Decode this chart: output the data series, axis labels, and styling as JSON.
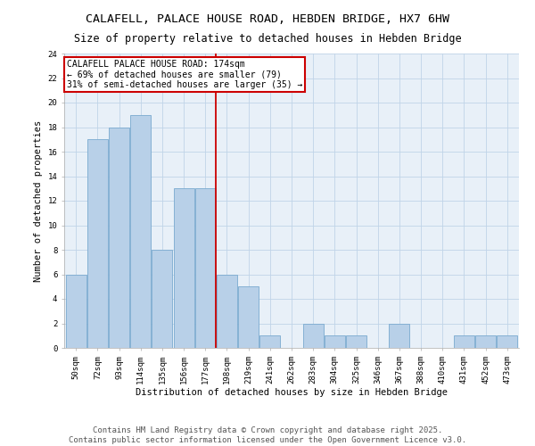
{
  "title1": "CALAFELL, PALACE HOUSE ROAD, HEBDEN BRIDGE, HX7 6HW",
  "title2": "Size of property relative to detached houses in Hebden Bridge",
  "xlabel": "Distribution of detached houses by size in Hebden Bridge",
  "ylabel": "Number of detached properties",
  "footer": "Contains HM Land Registry data © Crown copyright and database right 2025.\nContains public sector information licensed under the Open Government Licence v3.0.",
  "bin_labels": [
    "50sqm",
    "72sqm",
    "93sqm",
    "114sqm",
    "135sqm",
    "156sqm",
    "177sqm",
    "198sqm",
    "219sqm",
    "241sqm",
    "262sqm",
    "283sqm",
    "304sqm",
    "325sqm",
    "346sqm",
    "367sqm",
    "388sqm",
    "410sqm",
    "431sqm",
    "452sqm",
    "473sqm"
  ],
  "bar_heights": [
    6,
    17,
    18,
    19,
    8,
    13,
    13,
    6,
    5,
    1,
    0,
    2,
    1,
    1,
    0,
    2,
    0,
    0,
    1,
    1,
    1
  ],
  "bar_color": "#b8d0e8",
  "bar_edge_color": "#7aaacf",
  "vline_x": 6.5,
  "vline_color": "#cc0000",
  "annotation_title": "CALAFELL PALACE HOUSE ROAD: 174sqm",
  "annotation_line1": "← 69% of detached houses are smaller (79)",
  "annotation_line2": "31% of semi-detached houses are larger (35) →",
  "annotation_box_color": "#cc0000",
  "ylim": [
    0,
    24
  ],
  "yticks": [
    0,
    2,
    4,
    6,
    8,
    10,
    12,
    14,
    16,
    18,
    20,
    22,
    24
  ],
  "grid_color": "#c0d4e8",
  "bg_color": "#e8f0f8",
  "title_fontsize": 9.5,
  "subtitle_fontsize": 8.5,
  "axis_label_fontsize": 7.5,
  "tick_fontsize": 6.5,
  "annotation_fontsize": 7.0,
  "footer_fontsize": 6.5,
  "ylabel_fontsize": 7.5
}
